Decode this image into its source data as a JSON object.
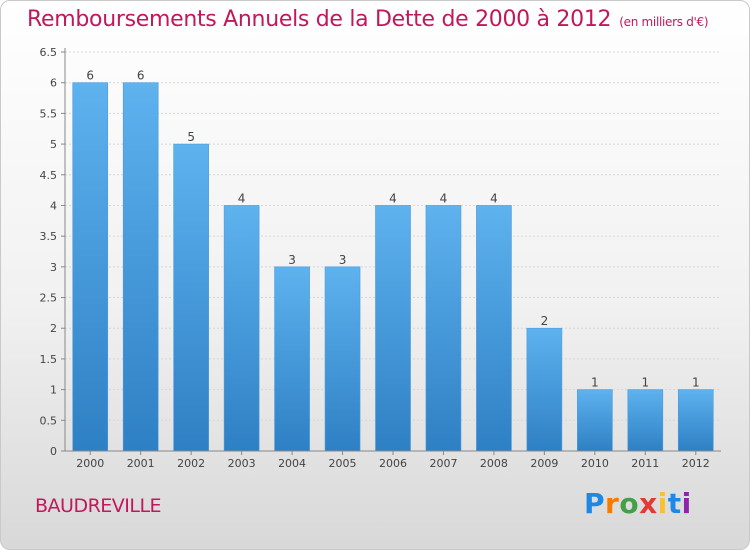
{
  "title": "Remboursements Annuels de la Dette de 2000 à 2012",
  "subtitle": "(en milliers d'€)",
  "city": "BAUDREVILLE",
  "logo": {
    "text": "Proxiti",
    "letter_colors": [
      "#1e88e5",
      "#f57c00",
      "#43a047",
      "#e53935",
      "#fbc02d",
      "#1e88e5",
      "#8e24aa"
    ]
  },
  "colors": {
    "title": "#c2185b",
    "bar_top": "#5eb2ee",
    "bar_bottom": "#2e80c4"
  },
  "chart_data": {
    "type": "bar",
    "categories": [
      "2000",
      "2001",
      "2002",
      "2003",
      "2004",
      "2005",
      "2006",
      "2007",
      "2008",
      "2009",
      "2010",
      "2011",
      "2012"
    ],
    "values": [
      6,
      6,
      5,
      4,
      3,
      3,
      4,
      4,
      4,
      2,
      1,
      1,
      1
    ],
    "data_labels": [
      "6",
      "6",
      "5",
      "4",
      "3",
      "3",
      "4",
      "4",
      "4",
      "2",
      "1",
      "1",
      "1"
    ],
    "yticks": [
      "0",
      "0.5",
      "1",
      "1.5",
      "2",
      "2.5",
      "3",
      "3.5",
      "4",
      "4.5",
      "5",
      "5.5",
      "6",
      "6.5"
    ],
    "ylim": [
      0,
      6.5
    ],
    "grid": true,
    "xlabel": "",
    "ylabel": ""
  }
}
